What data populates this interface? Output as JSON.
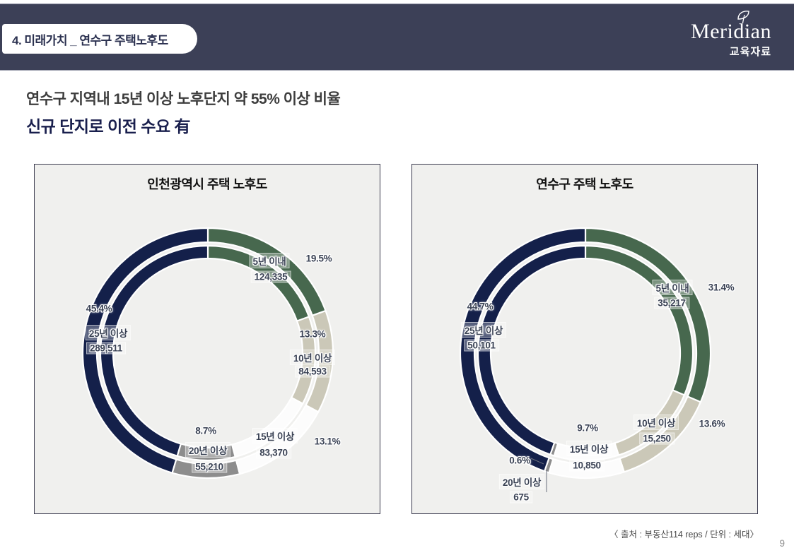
{
  "header": {
    "slide_title": "4. 미래가치 _ 연수구 주택노후도",
    "logo_text": "Meridian",
    "logo_subtitle": "교육자료"
  },
  "headline": {
    "line1": "연수구 지역내 15년 이상 노후단지 약 55% 이상 비율",
    "line2": "신규 단지로 이전 수요 有"
  },
  "colors": {
    "header_bar": "#3C4057",
    "panel_bg": "#F0F0EE",
    "panel_border": "#3A3A4E",
    "navy": "#14204A",
    "green": "#47684E",
    "beige": "#CBC8B8",
    "white_seg": "#FCFCFC",
    "gray": "#8D8D8D",
    "label_text": "#3A4254",
    "headline_accent": "#191F4D"
  },
  "chart_data": [
    {
      "type": "pie",
      "variant": "double-ring-donut",
      "title": "인천광역시 주택 노후도",
      "unit": "세대",
      "legend_position": "none",
      "segments": [
        {
          "label": "5년 이내",
          "value": "124,335",
          "value_num": 124335,
          "pct": "19.5%",
          "pct_num": 19.5,
          "color": "#47684E"
        },
        {
          "label": "10년 이상",
          "value": "84,593",
          "value_num": 84593,
          "pct": "13.3%",
          "pct_num": 13.3,
          "color": "#CBC8B8"
        },
        {
          "label": "15년 이상",
          "value": "83,370",
          "value_num": 83370,
          "pct": "13.1%",
          "pct_num": 13.1,
          "color": "#FCFCFC"
        },
        {
          "label": "20년 이상",
          "value": "55,210",
          "value_num": 55210,
          "pct": "8.7%",
          "pct_num": 8.7,
          "color": "#8D8D8D"
        },
        {
          "label": "25년 이상",
          "value": "289,511",
          "value_num": 289511,
          "pct": "45.4%",
          "pct_num": 45.4,
          "color": "#14204A"
        }
      ]
    },
    {
      "type": "pie",
      "variant": "double-ring-donut",
      "title": "연수구 주택 노후도",
      "unit": "세대",
      "legend_position": "none",
      "segments": [
        {
          "label": "5년 이내",
          "value": "35,217",
          "value_num": 35217,
          "pct": "31.4%",
          "pct_num": 31.4,
          "color": "#47684E"
        },
        {
          "label": "10년 이상",
          "value": "15,250",
          "value_num": 15250,
          "pct": "13.6%",
          "pct_num": 13.6,
          "color": "#CBC8B8"
        },
        {
          "label": "15년 이상",
          "value": "10,850",
          "value_num": 10850,
          "pct": "9.7%",
          "pct_num": 9.7,
          "color": "#FCFCFC"
        },
        {
          "label": "20년 이상",
          "value": "675",
          "value_num": 675,
          "pct": "0.6%",
          "pct_num": 0.6,
          "color": "#8D8D8D"
        },
        {
          "label": "25년 이상",
          "value": "50,101",
          "value_num": 50101,
          "pct": "44.7%",
          "pct_num": 44.7,
          "color": "#14204A"
        }
      ]
    }
  ],
  "footer": {
    "source": "〈 출처 : 부동산114 reps / 단위 : 세대〉",
    "page_number": "9"
  }
}
